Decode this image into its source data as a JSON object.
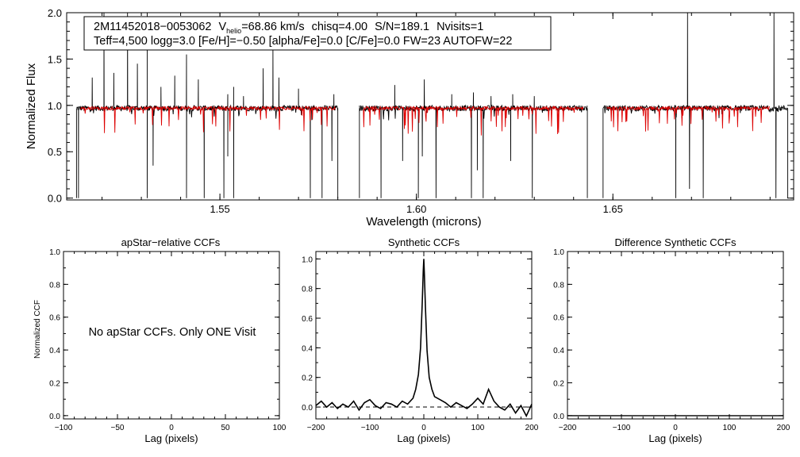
{
  "header": {
    "object_id": "2M11452018−0053062",
    "vhelio_label": "V",
    "vhelio_sub": "helio",
    "vhelio_value": "=68.86 km/s",
    "chisq": "chisq=4.00",
    "snr": "S/N=189.1",
    "nvisits": "Nvisits=1",
    "params_line": "Teff=4,500 logg=3.0 [Fe/H]=−0.50 [alpha/Fe]=0.0 [C/Fe]=0.0 FW=23 AUTOFW=22"
  },
  "note": "No apStar CCFs.  Only ONE Visit",
  "colors": {
    "observed": "#000000",
    "model": "#dd0000",
    "axis": "#000000"
  },
  "chart_data": [
    {
      "type": "line",
      "title": "",
      "xlabel": "Wavelength (microns)",
      "ylabel": "Normalized Flux",
      "xlim": [
        1.511,
        1.696
      ],
      "ylim": [
        -0.02,
        2.0
      ],
      "xticks": [
        1.55,
        1.6,
        1.65
      ],
      "xtick_labels": [
        "1.55",
        "1.60",
        "1.65"
      ],
      "yticks": [
        0.0,
        0.5,
        1.0,
        1.5,
        2.0
      ],
      "ytick_labels": [
        "0.0",
        "0.5",
        "1.0",
        "1.5",
        "2.0"
      ],
      "chips": [
        [
          1.5135,
          1.58
        ],
        [
          1.5855,
          1.6435
        ],
        [
          1.6475,
          1.6945
        ]
      ],
      "model_chips": [
        [
          1.5145,
          1.5795
        ],
        [
          1.5865,
          1.6425
        ],
        [
          1.6485,
          1.69
        ]
      ],
      "continuum": 0.97,
      "emission_spikes": [
        [
          1.5175,
          1.3
        ],
        [
          1.5205,
          2.0
        ],
        [
          1.523,
          1.35
        ],
        [
          1.5265,
          2.0
        ],
        [
          1.529,
          1.45
        ],
        [
          1.5315,
          2.0
        ],
        [
          1.535,
          1.2
        ],
        [
          1.5385,
          1.32
        ],
        [
          1.5415,
          1.55
        ],
        [
          1.5445,
          1.28
        ],
        [
          1.552,
          1.12
        ],
        [
          1.5535,
          1.2
        ],
        [
          1.556,
          1.1
        ],
        [
          1.561,
          1.4
        ],
        [
          1.5635,
          1.6
        ],
        [
          1.565,
          1.3
        ],
        [
          1.57,
          1.18
        ],
        [
          1.579,
          1.12
        ],
        [
          1.5945,
          1.22
        ],
        [
          1.602,
          1.28
        ],
        [
          1.609,
          1.12
        ],
        [
          1.6145,
          1.14
        ],
        [
          1.619,
          1.1
        ],
        [
          1.6245,
          1.12
        ],
        [
          1.63,
          1.1
        ],
        [
          1.669,
          2.0
        ],
        [
          1.691,
          2.0
        ]
      ],
      "absorption_dips": [
        [
          1.514,
          0.0
        ],
        [
          1.5315,
          0.0
        ],
        [
          1.533,
          0.35
        ],
        [
          1.5415,
          0.0
        ],
        [
          1.546,
          0.0
        ],
        [
          1.551,
          0.0
        ],
        [
          1.552,
          0.45
        ],
        [
          1.5535,
          0.0
        ],
        [
          1.573,
          0.0
        ],
        [
          1.576,
          0.0
        ],
        [
          1.5785,
          0.4
        ],
        [
          1.591,
          0.0
        ],
        [
          1.5965,
          0.4
        ],
        [
          1.6005,
          0.0
        ],
        [
          1.6015,
          0.45
        ],
        [
          1.605,
          0.0
        ],
        [
          1.614,
          0.0
        ],
        [
          1.6155,
          0.3
        ],
        [
          1.617,
          0.0
        ],
        [
          1.624,
          0.4
        ],
        [
          1.6295,
          0.0
        ],
        [
          1.666,
          0.0
        ],
        [
          1.6695,
          0.1
        ],
        [
          1.673,
          0.0
        ],
        [
          1.6915,
          0.0
        ]
      ],
      "series": [
        {
          "values_desc": "observed spectrum"
        },
        {
          "values_desc": "synthetic model"
        }
      ]
    },
    {
      "type": "line",
      "title": "apStar−relative CCFs",
      "xlabel": "Lag (pixels)",
      "ylabel": "Normalized CCF",
      "xlim": [
        -100,
        100
      ],
      "ylim": [
        -0.02,
        1.0
      ],
      "xticks": [
        -100,
        -50,
        0,
        50,
        100
      ],
      "xtick_labels": [
        "−100",
        "−50",
        "0",
        "50",
        "100"
      ],
      "yticks": [
        0.0,
        0.2,
        0.4,
        0.6,
        0.8,
        1.0
      ],
      "ytick_labels": [
        "0.0",
        "0.2",
        "0.4",
        "0.6",
        "0.8",
        "1.0"
      ],
      "series": []
    },
    {
      "type": "line",
      "title": "Synthetic CCFs",
      "xlabel": "Lag (pixels)",
      "ylabel": "",
      "xlim": [
        -200,
        200
      ],
      "ylim": [
        -0.08,
        1.05
      ],
      "xticks": [
        -200,
        -100,
        0,
        100,
        200
      ],
      "xtick_labels": [
        "−200",
        "−100",
        "0",
        "100",
        "200"
      ],
      "yticks": [
        0.0,
        0.2,
        0.4,
        0.6,
        0.8,
        1.0
      ],
      "ytick_labels": [
        "0.0",
        "0.2",
        "0.4",
        "0.6",
        "0.8",
        "1.0"
      ],
      "baseline": 0.0,
      "series": [
        {
          "x": [
            -200,
            -190,
            -180,
            -170,
            -160,
            -150,
            -140,
            -130,
            -120,
            -110,
            -100,
            -90,
            -80,
            -70,
            -60,
            -50,
            -40,
            -30,
            -20,
            -15,
            -10,
            -6,
            -3,
            -1,
            0,
            1,
            3,
            6,
            10,
            15,
            20,
            30,
            40,
            50,
            60,
            70,
            80,
            90,
            100,
            110,
            120,
            130,
            140,
            150,
            160,
            170,
            180,
            190,
            200
          ],
          "values": [
            0.01,
            0.04,
            0.0,
            0.03,
            -0.01,
            0.02,
            0.0,
            0.04,
            -0.02,
            0.03,
            0.05,
            0.01,
            -0.01,
            0.03,
            0.02,
            0.0,
            0.04,
            0.02,
            0.06,
            0.12,
            0.22,
            0.4,
            0.7,
            0.92,
            1.0,
            0.9,
            0.68,
            0.38,
            0.2,
            0.12,
            0.07,
            0.05,
            0.03,
            0.0,
            0.03,
            0.01,
            -0.01,
            0.02,
            0.06,
            0.02,
            0.12,
            0.04,
            0.0,
            -0.02,
            0.02,
            -0.04,
            0.01,
            -0.06,
            0.02
          ]
        }
      ]
    },
    {
      "type": "line",
      "title": "Difference Synthetic CCFs",
      "xlabel": "Lag (pixels)",
      "ylabel": "",
      "xlim": [
        -200,
        200
      ],
      "ylim": [
        -0.02,
        1.0
      ],
      "xticks": [
        -200,
        -100,
        0,
        100,
        200
      ],
      "xtick_labels": [
        "−200",
        "−100",
        "0",
        "100",
        "200"
      ],
      "yticks": [
        0.0,
        0.2,
        0.4,
        0.6,
        0.8,
        1.0
      ],
      "ytick_labels": [
        "0.0",
        "0.2",
        "0.4",
        "0.6",
        "0.8",
        "1.0"
      ],
      "series": [
        {
          "x": [
            -200,
            200
          ],
          "values": [
            0.0,
            0.0
          ]
        }
      ]
    }
  ]
}
